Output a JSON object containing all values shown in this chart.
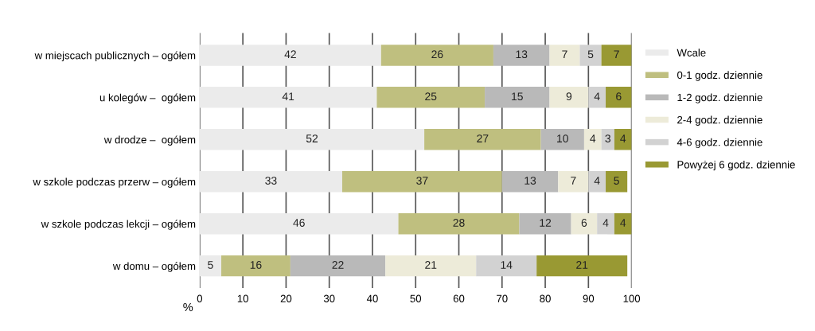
{
  "chart_data": {
    "type": "bar",
    "orientation": "horizontal",
    "stacked": true,
    "xlabel": "%",
    "categories": [
      "w miejscach publicznych – ogółem",
      "u kolegów –  ogółem",
      "w drodze –  ogółem",
      "w szkole podczas przerw – ogółem",
      "w szkole podczas lekcji – ogółem",
      "w domu – ogółem"
    ],
    "series": [
      {
        "name": "Wcale",
        "color": "#ebebeb",
        "values": [
          42,
          41,
          52,
          33,
          46,
          5
        ]
      },
      {
        "name": "0-1 godz. dziennie",
        "color": "#bfbf7f",
        "values": [
          26,
          25,
          27,
          37,
          28,
          16
        ]
      },
      {
        "name": "1-2 godz. dziennie",
        "color": "#b9b9b9",
        "values": [
          13,
          15,
          10,
          13,
          12,
          22
        ]
      },
      {
        "name": "2-4 godz. dziennie",
        "color": "#edebd9",
        "values": [
          7,
          9,
          4,
          7,
          6,
          21
        ]
      },
      {
        "name": "4-6 godz. dziennie",
        "color": "#d2d2d2",
        "values": [
          5,
          4,
          3,
          4,
          4,
          14
        ]
      },
      {
        "name": "Powyżej 6 godz. dziennie",
        "color": "#999933",
        "values": [
          7,
          6,
          4,
          5,
          4,
          21
        ]
      }
    ],
    "xlim": [
      0,
      100
    ],
    "xticks": [
      0,
      10,
      20,
      30,
      40,
      50,
      60,
      70,
      80,
      90,
      100
    ],
    "grid": "x",
    "legend": "right",
    "data_labels": true
  }
}
